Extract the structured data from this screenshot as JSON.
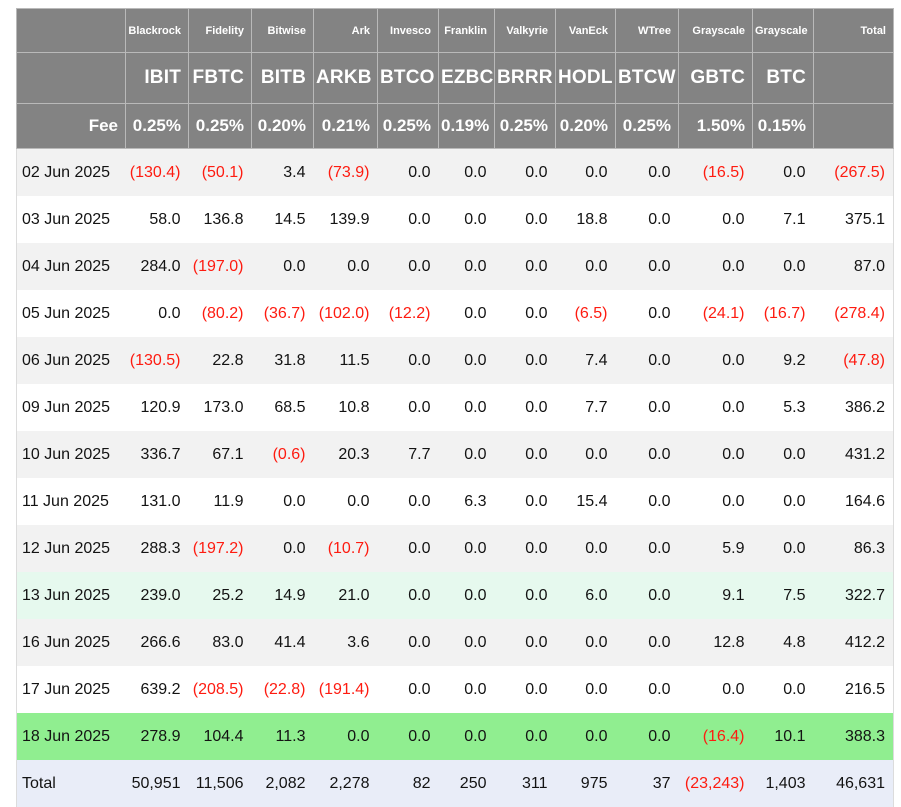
{
  "chart_data": {
    "type": "table",
    "fee_label": "Fee",
    "total_label": "Total",
    "columns": [
      {
        "provider": "Blackrock",
        "ticker": "IBIT",
        "fee": "0.25%"
      },
      {
        "provider": "Fidelity",
        "ticker": "FBTC",
        "fee": "0.25%"
      },
      {
        "provider": "Bitwise",
        "ticker": "BITB",
        "fee": "0.20%"
      },
      {
        "provider": "Ark",
        "ticker": "ARKB",
        "fee": "0.21%"
      },
      {
        "provider": "Invesco",
        "ticker": "BTCO",
        "fee": "0.25%"
      },
      {
        "provider": "Franklin",
        "ticker": "EZBC",
        "fee": "0.19%"
      },
      {
        "provider": "Valkyrie",
        "ticker": "BRRR",
        "fee": "0.25%"
      },
      {
        "provider": "VanEck",
        "ticker": "HODL",
        "fee": "0.20%"
      },
      {
        "provider": "WTree",
        "ticker": "BTCW",
        "fee": "0.25%"
      },
      {
        "provider": "Grayscale",
        "ticker": "GBTC",
        "fee": "1.50%"
      },
      {
        "provider": "Grayscale",
        "ticker": "BTC",
        "fee": "0.15%"
      }
    ],
    "rows": [
      {
        "date": "02 Jun 2025",
        "bg": "stripe",
        "values": [
          "(130.4)",
          "(50.1)",
          "3.4",
          "(73.9)",
          "0.0",
          "0.0",
          "0.0",
          "0.0",
          "0.0",
          "(16.5)",
          "0.0",
          "(267.5)"
        ]
      },
      {
        "date": "03 Jun 2025",
        "bg": "plain",
        "values": [
          "58.0",
          "136.8",
          "14.5",
          "139.9",
          "0.0",
          "0.0",
          "0.0",
          "18.8",
          "0.0",
          "0.0",
          "7.1",
          "375.1"
        ]
      },
      {
        "date": "04 Jun 2025",
        "bg": "stripe",
        "values": [
          "284.0",
          "(197.0)",
          "0.0",
          "0.0",
          "0.0",
          "0.0",
          "0.0",
          "0.0",
          "0.0",
          "0.0",
          "0.0",
          "87.0"
        ]
      },
      {
        "date": "05 Jun 2025",
        "bg": "plain",
        "values": [
          "0.0",
          "(80.2)",
          "(36.7)",
          "(102.0)",
          "(12.2)",
          "0.0",
          "0.0",
          "(6.5)",
          "0.0",
          "(24.1)",
          "(16.7)",
          "(278.4)"
        ]
      },
      {
        "date": "06 Jun 2025",
        "bg": "stripe",
        "values": [
          "(130.5)",
          "22.8",
          "31.8",
          "11.5",
          "0.0",
          "0.0",
          "0.0",
          "7.4",
          "0.0",
          "0.0",
          "9.2",
          "(47.8)"
        ]
      },
      {
        "date": "09 Jun 2025",
        "bg": "plain",
        "values": [
          "120.9",
          "173.0",
          "68.5",
          "10.8",
          "0.0",
          "0.0",
          "0.0",
          "7.7",
          "0.0",
          "0.0",
          "5.3",
          "386.2"
        ]
      },
      {
        "date": "10 Jun 2025",
        "bg": "stripe",
        "values": [
          "336.7",
          "67.1",
          "(0.6)",
          "20.3",
          "7.7",
          "0.0",
          "0.0",
          "0.0",
          "0.0",
          "0.0",
          "0.0",
          "431.2"
        ]
      },
      {
        "date": "11 Jun 2025",
        "bg": "plain",
        "values": [
          "131.0",
          "11.9",
          "0.0",
          "0.0",
          "0.0",
          "6.3",
          "0.0",
          "15.4",
          "0.0",
          "0.0",
          "0.0",
          "164.6"
        ]
      },
      {
        "date": "12 Jun 2025",
        "bg": "stripe",
        "values": [
          "288.3",
          "(197.2)",
          "0.0",
          "(10.7)",
          "0.0",
          "0.0",
          "0.0",
          "0.0",
          "0.0",
          "5.9",
          "0.0",
          "86.3"
        ]
      },
      {
        "date": "13 Jun 2025",
        "bg": "pale-green",
        "values": [
          "239.0",
          "25.2",
          "14.9",
          "21.0",
          "0.0",
          "0.0",
          "0.0",
          "6.0",
          "0.0",
          "9.1",
          "7.5",
          "322.7"
        ]
      },
      {
        "date": "16 Jun 2025",
        "bg": "stripe",
        "values": [
          "266.6",
          "83.0",
          "41.4",
          "3.6",
          "0.0",
          "0.0",
          "0.0",
          "0.0",
          "0.0",
          "12.8",
          "4.8",
          "412.2"
        ]
      },
      {
        "date": "17 Jun 2025",
        "bg": "plain",
        "values": [
          "639.2",
          "(208.5)",
          "(22.8)",
          "(191.4)",
          "0.0",
          "0.0",
          "0.0",
          "0.0",
          "0.0",
          "0.0",
          "0.0",
          "216.5"
        ]
      },
      {
        "date": "18 Jun 2025",
        "bg": "green",
        "values": [
          "278.9",
          "104.4",
          "11.3",
          "0.0",
          "0.0",
          "0.0",
          "0.0",
          "0.0",
          "0.0",
          "(16.4)",
          "10.1",
          "388.3"
        ]
      }
    ],
    "total_row": {
      "label": "Total",
      "bg": "total",
      "values": [
        "50,951",
        "11,506",
        "2,082",
        "2,278",
        "82",
        "250",
        "311",
        "975",
        "37",
        "(23,243)",
        "1,403",
        "46,631"
      ]
    }
  },
  "colors": {
    "header_bg": "#838383",
    "header_text": "#ffffff",
    "stripe_bg": "#f2f2f2",
    "plain_bg": "#ffffff",
    "pale_green_bg": "#e6f9ee",
    "green_bg": "#90ee90",
    "total_bg": "#e9edf8",
    "negative_text": "#fe1b10",
    "body_text": "#131313"
  }
}
